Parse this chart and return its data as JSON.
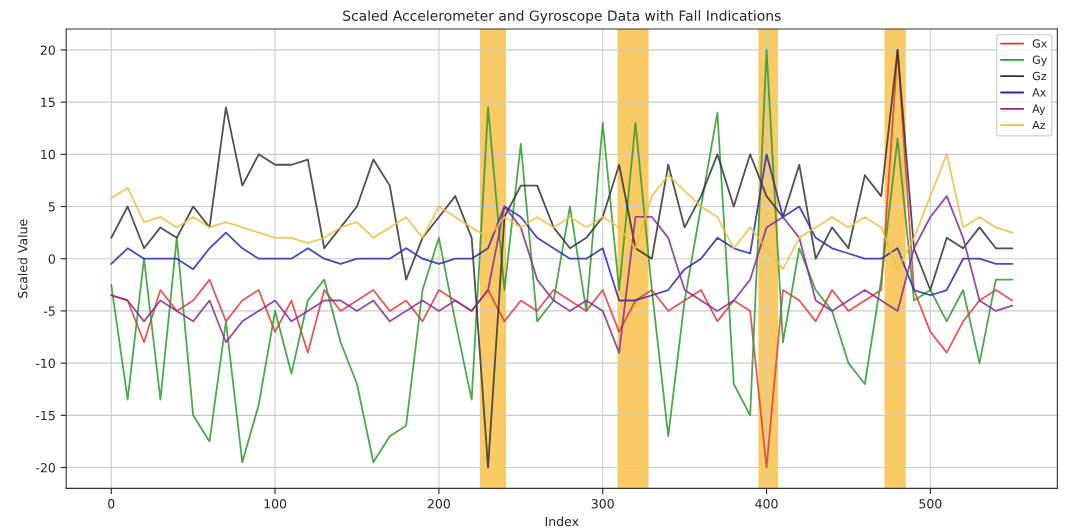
{
  "chart_data": {
    "type": "line",
    "title": "Scaled Accelerometer and Gyroscope Data with Fall Indications",
    "xlabel": "Index",
    "ylabel": "Scaled Value",
    "x": [
      0,
      10,
      20,
      30,
      40,
      50,
      60,
      70,
      80,
      90,
      100,
      110,
      120,
      130,
      140,
      150,
      160,
      170,
      180,
      190,
      200,
      210,
      220,
      230,
      240,
      250,
      260,
      270,
      280,
      290,
      300,
      310,
      320,
      330,
      340,
      350,
      360,
      370,
      380,
      390,
      400,
      410,
      420,
      430,
      440,
      450,
      460,
      470,
      480,
      490,
      500,
      510,
      520,
      530,
      540,
      550
    ],
    "series": [
      {
        "name": "Gx",
        "color": "#e03c3c",
        "values": [
          -3.5,
          -4,
          -8,
          -3,
          -5,
          -4,
          -2,
          -6,
          -4,
          -3,
          -7,
          -4,
          -9,
          -3,
          -5,
          -4,
          -3,
          -5,
          -4,
          -6,
          -3,
          -4,
          -5,
          -3,
          -6,
          -4,
          -5,
          -3,
          -4,
          -5,
          -3,
          -7,
          -4,
          -3,
          -5,
          -4,
          -3,
          -6,
          -4,
          -5,
          -20,
          -3,
          -4,
          -6,
          -3,
          -5,
          -4,
          -3,
          20,
          -3,
          -7,
          -9,
          -6,
          -4,
          -3,
          -4
        ]
      },
      {
        "name": "Gy",
        "color": "#2e9a2e",
        "values": [
          -2.5,
          -13.5,
          0,
          -13.5,
          2,
          -15,
          -17.5,
          -6,
          -19.5,
          -14,
          -5,
          -11,
          -4,
          -2,
          -8,
          -12,
          -19.5,
          -17,
          -16,
          -3,
          2,
          -6,
          -13.5,
          14.5,
          -3,
          11,
          -6,
          -4,
          5,
          -5,
          13,
          -3,
          13,
          -3,
          -17,
          -4,
          5,
          14,
          -12,
          -15,
          20,
          -8,
          1,
          -3,
          -5,
          -10,
          -12,
          -2,
          11.5,
          -4,
          -3,
          -6,
          -3,
          -10,
          -2,
          -2
        ]
      },
      {
        "name": "Gz",
        "color": "#333333",
        "values": [
          2,
          5,
          1,
          3,
          2,
          5,
          3,
          14.5,
          7,
          10,
          9,
          9,
          9.5,
          1,
          3,
          5,
          9.5,
          7,
          -2,
          2,
          4,
          6,
          2,
          -20,
          4,
          7,
          7,
          3,
          1,
          2,
          4,
          9,
          1,
          0,
          9,
          3,
          6,
          10,
          5,
          10,
          6,
          4,
          9,
          0,
          3,
          1,
          8,
          6,
          20,
          1,
          -3,
          2,
          1,
          3,
          1,
          1
        ]
      },
      {
        "name": "Ax",
        "color": "#2a2ab0",
        "values": [
          -0.5,
          1,
          0,
          0,
          0,
          -1,
          1,
          2.5,
          1,
          0,
          0,
          0,
          1,
          0,
          -0.5,
          0,
          0,
          0,
          1,
          0,
          -0.5,
          0,
          0,
          1,
          5,
          4,
          2,
          1,
          0,
          0,
          1,
          -4,
          -4,
          -3.5,
          -3,
          -1,
          0,
          2,
          1,
          0.5,
          10,
          4,
          5,
          2,
          1,
          0.5,
          0,
          0,
          1,
          -3,
          -3.5,
          -3,
          0,
          0,
          -0.5,
          -0.5
        ]
      },
      {
        "name": "Ay",
        "color": "#8a2a9a",
        "values": [
          -3.5,
          -4,
          -6,
          -4,
          -5,
          -6,
          -4,
          -8,
          -6,
          -5,
          -4,
          -6,
          -5,
          -4,
          -4,
          -5,
          -4,
          -6,
          -5,
          -4,
          -5,
          -4,
          -5,
          -3,
          5,
          3,
          -2,
          -4,
          -5,
          -4,
          -5,
          -9,
          4,
          4,
          2,
          -3,
          -4,
          -5,
          -4,
          -2,
          3,
          4,
          2,
          -4,
          -5,
          -4,
          -3,
          -4,
          -5,
          1,
          4,
          6,
          2,
          -4,
          -5,
          -4.5
        ]
      },
      {
        "name": "Az",
        "color": "#f0c040",
        "values": [
          5.8,
          6.8,
          3.5,
          4,
          3,
          4,
          3,
          3.5,
          3,
          2.5,
          2,
          2,
          1.5,
          2,
          3,
          3.5,
          2,
          3,
          4,
          2,
          5,
          4,
          3,
          2,
          4,
          3,
          4,
          3,
          4,
          3,
          4,
          3,
          1,
          6,
          8,
          6.5,
          5,
          4,
          1,
          3,
          1,
          -1,
          2,
          3,
          4,
          3,
          4,
          3,
          -1,
          2,
          6,
          10,
          3,
          4,
          3,
          2.5
        ]
      }
    ],
    "bands": [
      {
        "axis": "x",
        "from": 225,
        "to": 241,
        "color": "#f8b830"
      },
      {
        "axis": "x",
        "from": 309,
        "to": 328,
        "color": "#f8b830"
      },
      {
        "axis": "x",
        "from": 395,
        "to": 407,
        "color": "#f8b830"
      },
      {
        "axis": "x",
        "from": 472,
        "to": 485,
        "color": "#f8b830"
      }
    ],
    "xlim": [
      -27.5,
      577.5
    ],
    "xticks": [
      0,
      100,
      200,
      300,
      400,
      500
    ],
    "ylim": [
      -22,
      22
    ],
    "yticks": [
      -20,
      -15,
      -10,
      -5,
      0,
      5,
      10,
      15,
      20
    ],
    "grid": true,
    "legend": "top right"
  }
}
